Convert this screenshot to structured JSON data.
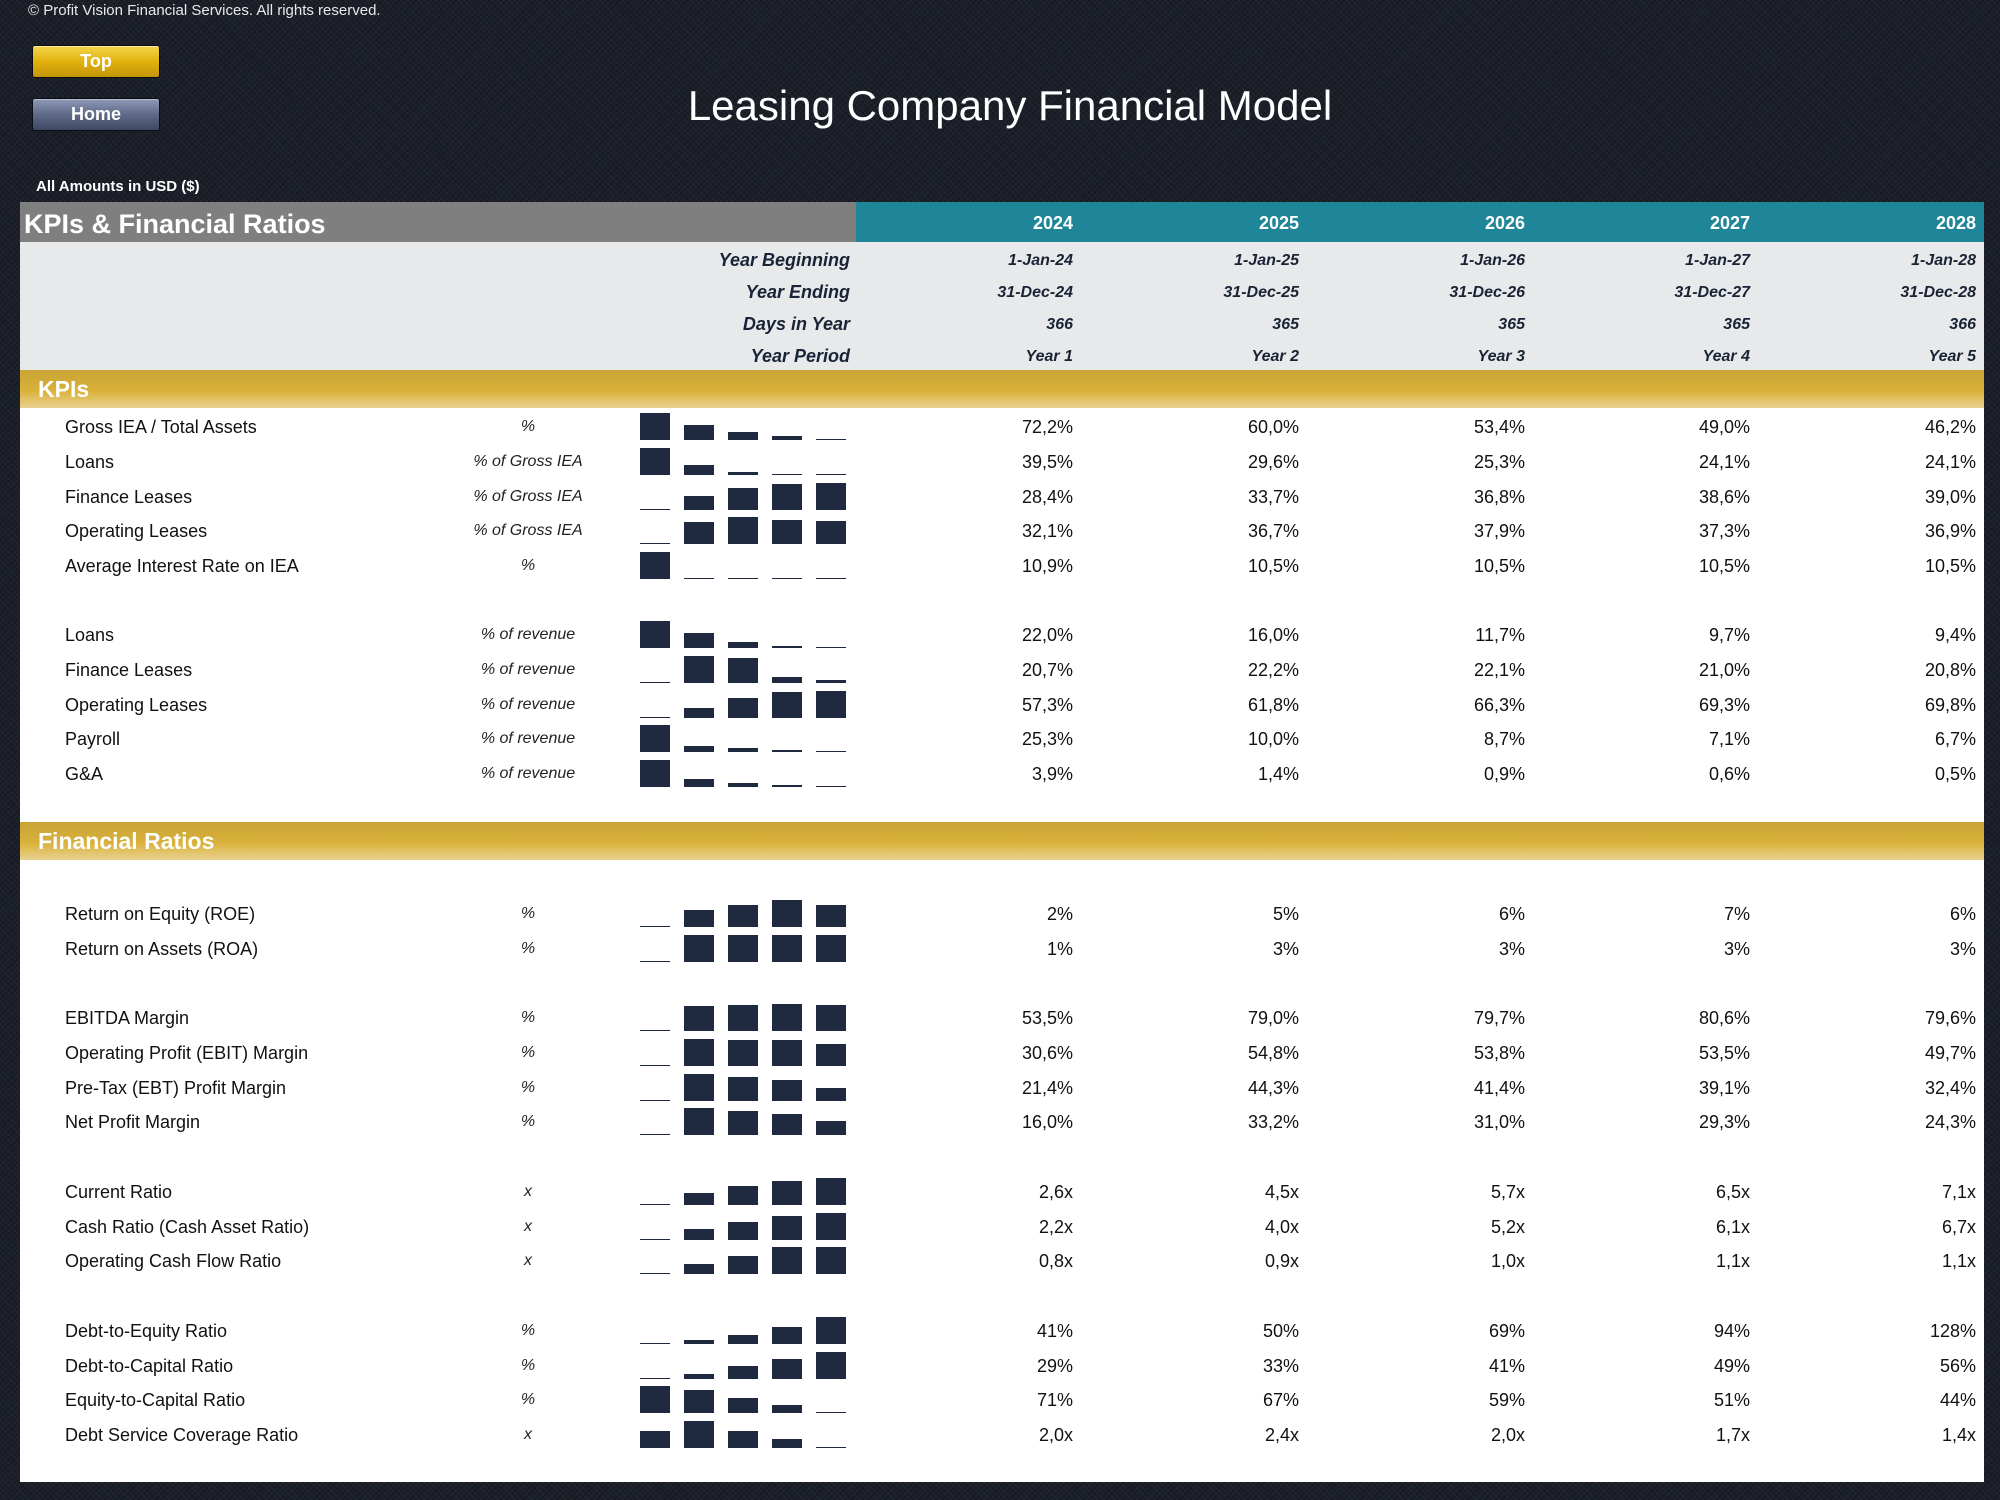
{
  "copyright": "© Profit Vision Financial Services. All rights reserved.",
  "nav": {
    "top_label": "Top",
    "home_label": "Home"
  },
  "title": "Leasing Company Financial Model",
  "amounts_note": "All Amounts in  USD ($)",
  "colors": {
    "header_grey": "#7f7f7f",
    "header_teal": "#1f8598",
    "section_gold": "#d9b13a",
    "sparkline": "#1f2a41",
    "background": "#1b1f28"
  },
  "table": {
    "title": "KPIs & Financial Ratios",
    "years": [
      "2024",
      "2025",
      "2026",
      "2027",
      "2028"
    ],
    "timing": [
      {
        "label": "Year Beginning",
        "values": [
          "1-Jan-24",
          "1-Jan-25",
          "1-Jan-26",
          "1-Jan-27",
          "1-Jan-28"
        ]
      },
      {
        "label": "Year Ending",
        "values": [
          "31-Dec-24",
          "31-Dec-25",
          "31-Dec-26",
          "31-Dec-27",
          "31-Dec-28"
        ]
      },
      {
        "label": "Days in Year",
        "values": [
          "366",
          "365",
          "365",
          "365",
          "366"
        ]
      },
      {
        "label": "Year Period",
        "values": [
          "Year 1",
          "Year 2",
          "Year 3",
          "Year 4",
          "Year 5"
        ]
      }
    ]
  },
  "sections": [
    {
      "title": "KPIs"
    },
    {
      "title": "Financial Ratios"
    }
  ],
  "rows": [
    {
      "label": "Gross IEA / Total Assets",
      "unit": "%",
      "values": [
        "72,2%",
        "60,0%",
        "53,4%",
        "49,0%",
        "46,2%"
      ],
      "spark": [
        72.2,
        60.0,
        53.4,
        49.0,
        46.2
      ]
    },
    {
      "label": "Loans",
      "unit": "% of Gross IEA",
      "values": [
        "39,5%",
        "29,6%",
        "25,3%",
        "24,1%",
        "24,1%"
      ],
      "spark": [
        39.5,
        29.6,
        25.3,
        24.1,
        24.1
      ]
    },
    {
      "label": "Finance Leases",
      "unit": "% of Gross IEA",
      "values": [
        "28,4%",
        "33,7%",
        "36,8%",
        "38,6%",
        "39,0%"
      ],
      "spark": [
        28.4,
        33.7,
        36.8,
        38.6,
        39.0
      ]
    },
    {
      "label": "Operating Leases",
      "unit": "% of Gross IEA",
      "values": [
        "32,1%",
        "36,7%",
        "37,9%",
        "37,3%",
        "36,9%"
      ],
      "spark": [
        32.1,
        36.7,
        37.9,
        37.3,
        36.9
      ]
    },
    {
      "label": "Average Interest Rate on IEA",
      "unit": "%",
      "values": [
        "10,9%",
        "10,5%",
        "10,5%",
        "10,5%",
        "10,5%"
      ],
      "spark": [
        10.9,
        10.5,
        10.5,
        10.5,
        10.5
      ]
    },
    {
      "label": "Loans",
      "unit": "% of revenue",
      "values": [
        "22,0%",
        "16,0%",
        "11,7%",
        "9,7%",
        "9,4%"
      ],
      "spark": [
        22.0,
        16.0,
        11.7,
        9.7,
        9.4
      ]
    },
    {
      "label": "Finance Leases",
      "unit": "% of revenue",
      "values": [
        "20,7%",
        "22,2%",
        "22,1%",
        "21,0%",
        "20,8%"
      ],
      "spark": [
        20.7,
        22.2,
        22.1,
        21.0,
        20.8
      ]
    },
    {
      "label": "Operating Leases",
      "unit": "% of revenue",
      "values": [
        "57,3%",
        "61,8%",
        "66,3%",
        "69,3%",
        "69,8%"
      ],
      "spark": [
        57.3,
        61.8,
        66.3,
        69.3,
        69.8
      ]
    },
    {
      "label": "Payroll",
      "unit": "% of revenue",
      "values": [
        "25,3%",
        "10,0%",
        "8,7%",
        "7,1%",
        "6,7%"
      ],
      "spark": [
        25.3,
        10.0,
        8.7,
        7.1,
        6.7
      ]
    },
    {
      "label": "G&A",
      "unit": "% of revenue",
      "values": [
        "3,9%",
        "1,4%",
        "0,9%",
        "0,6%",
        "0,5%"
      ],
      "spark": [
        3.9,
        1.4,
        0.9,
        0.6,
        0.5
      ]
    },
    {
      "label": "Return on Equity (ROE)",
      "unit": "%",
      "values": [
        "2%",
        "5%",
        "6%",
        "7%",
        "6%"
      ],
      "spark": [
        2,
        5,
        6,
        7,
        6
      ]
    },
    {
      "label": "Return on Assets (ROA)",
      "unit": "%",
      "values": [
        "1%",
        "3%",
        "3%",
        "3%",
        "3%"
      ],
      "spark": [
        1,
        3,
        3,
        3,
        3
      ]
    },
    {
      "label": "EBITDA Margin",
      "unit": "%",
      "values": [
        "53,5%",
        "79,0%",
        "79,7%",
        "80,6%",
        "79,6%"
      ],
      "spark": [
        53.5,
        79.0,
        79.7,
        80.6,
        79.6
      ]
    },
    {
      "label": "Operating Profit (EBIT) Margin",
      "unit": "%",
      "values": [
        "30,6%",
        "54,8%",
        "53,8%",
        "53,5%",
        "49,7%"
      ],
      "spark": [
        30.6,
        54.8,
        53.8,
        53.5,
        49.7
      ]
    },
    {
      "label": "Pre-Tax (EBT) Profit Margin",
      "unit": "%",
      "values": [
        "21,4%",
        "44,3%",
        "41,4%",
        "39,1%",
        "32,4%"
      ],
      "spark": [
        21.4,
        44.3,
        41.4,
        39.1,
        32.4
      ]
    },
    {
      "label": "Net Profit Margin",
      "unit": "%",
      "values": [
        "16,0%",
        "33,2%",
        "31,0%",
        "29,3%",
        "24,3%"
      ],
      "spark": [
        16.0,
        33.2,
        31.0,
        29.3,
        24.3
      ]
    },
    {
      "label": "Current Ratio",
      "unit": "x",
      "values": [
        "2,6x",
        "4,5x",
        "5,7x",
        "6,5x",
        "7,1x"
      ],
      "spark": [
        2.6,
        4.5,
        5.7,
        6.5,
        7.1
      ]
    },
    {
      "label": "Cash Ratio (Cash Asset Ratio)",
      "unit": "x",
      "values": [
        "2,2x",
        "4,0x",
        "5,2x",
        "6,1x",
        "6,7x"
      ],
      "spark": [
        2.2,
        4.0,
        5.2,
        6.1,
        6.7
      ]
    },
    {
      "label": "Operating Cash Flow Ratio",
      "unit": "x",
      "values": [
        "0,8x",
        "0,9x",
        "1,0x",
        "1,1x",
        "1,1x"
      ],
      "spark": [
        0.8,
        0.9,
        1.0,
        1.1,
        1.1
      ]
    },
    {
      "label": "Debt-to-Equity Ratio",
      "unit": "%",
      "values": [
        "41%",
        "50%",
        "69%",
        "94%",
        "128%"
      ],
      "spark": [
        41,
        50,
        69,
        94,
        128
      ]
    },
    {
      "label": "Debt-to-Capital Ratio",
      "unit": "%",
      "values": [
        "29%",
        "33%",
        "41%",
        "49%",
        "56%"
      ],
      "spark": [
        29,
        33,
        41,
        49,
        56
      ]
    },
    {
      "label": "Equity-to-Capital Ratio",
      "unit": "%",
      "values": [
        "71%",
        "67%",
        "59%",
        "51%",
        "44%"
      ],
      "spark": [
        71,
        67,
        59,
        51,
        44
      ]
    },
    {
      "label": "Debt Service Coverage Ratio",
      "unit": "x",
      "values": [
        "2,0x",
        "2,4x",
        "2,0x",
        "1,7x",
        "1,4x"
      ],
      "spark": [
        2.0,
        2.4,
        2.0,
        1.7,
        1.4
      ]
    }
  ]
}
